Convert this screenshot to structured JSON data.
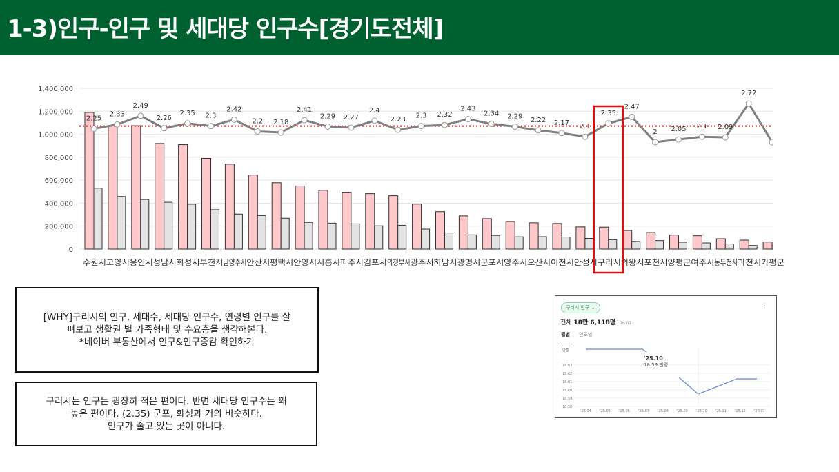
{
  "header": {
    "title": "1-3)인구-인구 및 세대당 인구수[경기도전체]"
  },
  "chart_data": {
    "type": "bar",
    "categories": [
      "수원시",
      "고양시",
      "용인시",
      "성남시",
      "화성시",
      "부천시",
      "남양주시",
      "안산시",
      "평택시",
      "안양시",
      "시흥시",
      "파주시",
      "김포시",
      "의정부시",
      "광주시",
      "하남시",
      "광명시",
      "군포시",
      "양주시",
      "오산시",
      "이천시",
      "안성시",
      "구리시",
      "의왕시",
      "포천시",
      "양평군",
      "여주시",
      "동두천시",
      "과천시",
      "가평군"
    ],
    "series": [
      {
        "type": "bar",
        "values": [
          1190000,
          1075000,
          1075000,
          920000,
          910000,
          790000,
          740000,
          645000,
          578000,
          550000,
          512000,
          495000,
          483000,
          465000,
          392000,
          326000,
          289000,
          265000,
          241000,
          229000,
          223000,
          193000,
          191000,
          162000,
          144000,
          122000,
          116000,
          90000,
          78000,
          62000
        ],
        "color": "#ffc9cc"
      },
      {
        "type": "bar",
        "values": [
          530000,
          458000,
          432000,
          408000,
          391000,
          343000,
          305000,
          292000,
          269000,
          233000,
          226000,
          220000,
          203000,
          208000,
          174000,
          141000,
          124000,
          119000,
          107000,
          108000,
          105000,
          93000,
          82000,
          67000,
          74000,
          60000,
          54000,
          45000,
          32000,
          30000
        ],
        "color": "#e3e3e3"
      },
      {
        "type": "line",
        "values": [
          2.25,
          2.33,
          2.49,
          2.26,
          2.35,
          2.3,
          2.42,
          2.2,
          2.18,
          2.41,
          2.29,
          2.27,
          2.4,
          2.23,
          2.3,
          2.32,
          2.43,
          2.34,
          2.29,
          2.22,
          2.17,
          2.1,
          2.35,
          2.47,
          2,
          2.05,
          2.1,
          2.09,
          2.72,
          2.0
        ],
        "labels": [
          "2.25",
          "2.33",
          "2.49",
          "2.26",
          "2.35",
          "2.3",
          "2.42",
          "2.2",
          "2.18",
          "2.41",
          "2.29",
          "2.27",
          "2.4",
          "2.23",
          "2.3",
          "2.32",
          "2.43",
          "2.34",
          "2.29",
          "2.22",
          "2.17",
          "2.1",
          "2.35",
          "2.47",
          "2",
          "2.05",
          "2.1",
          "2.09",
          "2.72",
          ""
        ],
        "color": "#808080"
      }
    ],
    "reference_line": {
      "value": 2.3,
      "color": "#e02020",
      "style": "dotted"
    },
    "highlight": {
      "category": "구리시",
      "color": "#e01010"
    },
    "yticks": [
      "0",
      "200,000",
      "400,000",
      "600,000",
      "800,000",
      "1,000,000",
      "1,200,000",
      "1,400,000"
    ],
    "ylim": [
      0,
      1400000
    ],
    "grid": true
  },
  "notes": [
    {
      "lines": [
        "[WHY]구리시의 인구, 세대수, 세대당 인구수, 연령별 인구를 살",
        "펴보고 생활권 별 가족형태 및 수요층을 생각해본다.",
        "*네이버 부동산에서 인구&인구증감 확인하기"
      ]
    },
    {
      "lines": [
        "구리시는 인구는 굉장히 적은 편이다. 반면 세대당 인구수는 꽤",
        "높은 편이다. (2.35) 군포, 화성과 거의 비슷하다.",
        "인구가 줄고 있는 곳이 아니다."
      ]
    }
  ],
  "mini": {
    "dropdown": "구리시 인구 ⌄",
    "total_label": "전체",
    "total_value": "18만 6,118명",
    "total_date": "26.01",
    "tabs": [
      "월별",
      "연도별"
    ],
    "unit": "만명",
    "tooltip_date": "'25.10",
    "tooltip_value": "18.59 만명",
    "yticks": [
      "18.63",
      "18.62",
      "18.61",
      "18.60",
      "18.59",
      "18.58"
    ],
    "xticks": [
      "'25.04",
      "'25.05",
      "'25.06",
      "'25.07",
      "'25.08",
      "'25.09",
      "'25.10",
      "'25.11",
      "'25.12",
      "'26.01"
    ],
    "color": "#6b86d6"
  }
}
